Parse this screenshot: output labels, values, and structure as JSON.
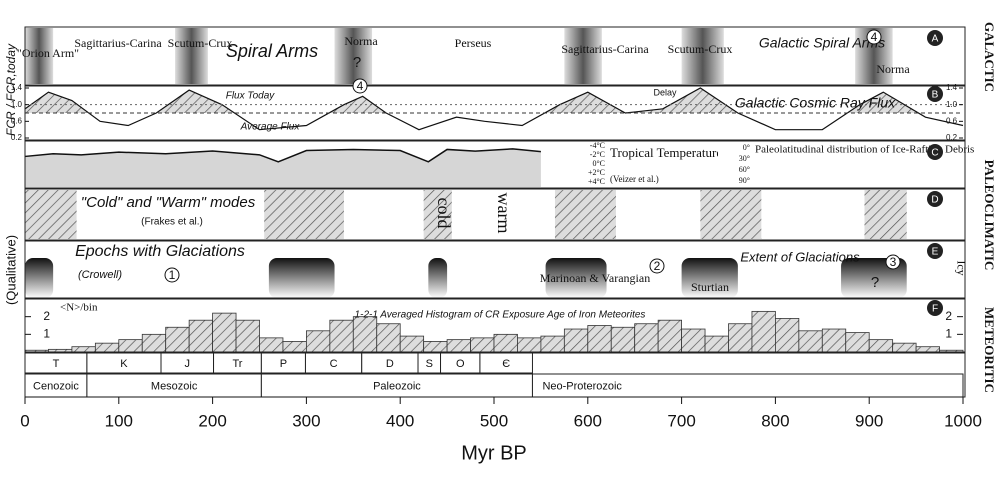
{
  "chart_data": {
    "type": "multi-panel",
    "xlabel": "Myr BP",
    "xlim": [
      0,
      1000
    ],
    "xticks": [
      0,
      100,
      200,
      300,
      400,
      500,
      600,
      700,
      800,
      900,
      1000
    ],
    "ylabel": "FCR / FCR,today",
    "qualitative": "(Qualitative)",
    "groups": [
      "GALACTIC",
      "PALEOCLIMATIC",
      "METEORITIC"
    ],
    "spiral": {
      "letter": "A",
      "title": "Spiral Arms",
      "caption": "Galactic Spiral Arms",
      "arms": [
        "\"Orion Arm\"",
        "Sagittarius-Carina",
        "Scutum-Crux",
        "Norma",
        "Perseus",
        "Sagittarius-Carina",
        "Scutum-Crux",
        "Norma"
      ],
      "bands": [
        [
          0,
          30
        ],
        [
          160,
          195
        ],
        [
          330,
          370
        ],
        [
          575,
          615
        ],
        [
          700,
          745
        ],
        [
          885,
          925
        ]
      ],
      "question": "?",
      "circle": "4"
    },
    "flux": {
      "letter": "B",
      "today": "Flux Today",
      "average": "Average Flux",
      "caption": "Galactic Cosmic Ray Flux",
      "delay": "Delay",
      "circle": "4",
      "ylim": [
        0.2,
        1.4
      ],
      "yticks": [
        0.2,
        0.6,
        {
          "value": 1,
          "label": "1.0"
        },
        1.4
      ],
      "today_value": 1,
      "average_value": 0.8,
      "x": [
        0,
        25,
        50,
        80,
        110,
        140,
        175,
        210,
        250,
        300,
        340,
        360,
        385,
        420,
        460,
        490,
        530,
        570,
        600,
        640,
        680,
        720,
        760,
        800,
        850,
        890,
        915,
        960,
        1000
      ],
      "values": [
        0.9,
        1.3,
        1.1,
        0.6,
        0.5,
        0.8,
        1.35,
        1.0,
        0.4,
        0.5,
        1.0,
        1.2,
        0.8,
        0.4,
        0.7,
        0.6,
        0.5,
        1.0,
        1.3,
        0.8,
        0.9,
        1.4,
        0.8,
        0.4,
        0.4,
        1.0,
        1.3,
        0.7,
        0.5
      ]
    },
    "temperature": {
      "letter": "C",
      "title": "Tropical Temperature",
      "source": "(Veizer et al.)",
      "ylim": [
        4,
        -4
      ],
      "yticks": [
        {
          "value": -4,
          "label": "-4°C"
        },
        {
          "value": -2,
          "label": "-2°C"
        },
        {
          "value": 0,
          "label": "0°C"
        },
        {
          "value": 2,
          "label": "+2°C"
        },
        {
          "value": 4,
          "label": "+4°C"
        }
      ],
      "x": [
        0,
        30,
        60,
        100,
        150,
        200,
        250,
        270,
        300,
        350,
        400,
        430,
        450,
        480,
        520,
        550
      ],
      "values": [
        -1.5,
        -2,
        -1.8,
        -2.3,
        -2,
        -2.5,
        -1.8,
        -0.5,
        -2.6,
        -2.8,
        -2.6,
        -0.5,
        -2.8,
        -2.5,
        -2.9,
        -2.4
      ]
    },
    "rafting": {
      "title": "Paleolatitudinal distribution of Ice-Rafting Debris",
      "ticks": [
        {
          "value": 0,
          "label": "0°"
        },
        {
          "value": 30,
          "label": "30°"
        },
        {
          "value": 60,
          "label": "60°"
        },
        {
          "value": 90,
          "label": "90°"
        }
      ]
    },
    "modes": {
      "letter": "D",
      "title": "\"Cold\" and \"Warm\" modes",
      "source": "(Frakes et al.)",
      "cold": "cold",
      "warm": "warm",
      "cold_intervals": [
        [
          0,
          55
        ],
        [
          255,
          340
        ],
        [
          425,
          455
        ],
        [
          565,
          630
        ],
        [
          720,
          785
        ],
        [
          895,
          940
        ]
      ]
    },
    "glaciations": {
      "letter": "E",
      "title": "Epochs with Glaciations",
      "source": "(Crowell)",
      "circles": [
        "1",
        "2",
        "3"
      ],
      "labels": [
        "Marinoan & Varangian",
        "Sturtian",
        "Extent of Glaciations",
        "?",
        "Icy"
      ],
      "intervals": [
        [
          0,
          30
        ],
        [
          260,
          330
        ],
        [
          430,
          450
        ],
        [
          555,
          620
        ],
        [
          700,
          760
        ],
        [
          870,
          940
        ]
      ]
    },
    "histogram": {
      "letter": "F",
      "title": "1-2-1 Averaged Histogram of CR Exposure Age of Iron Meteorites",
      "ylabel": "<N>/bin",
      "ylim": [
        0,
        3
      ],
      "yticks": [
        1,
        2
      ],
      "bins": [
        0,
        25,
        50,
        75,
        100,
        125,
        150,
        175,
        200,
        225,
        250,
        275,
        300,
        325,
        350,
        375,
        400,
        425,
        450,
        475,
        500,
        525,
        550,
        575,
        600,
        625,
        650,
        675,
        700,
        725,
        750,
        775,
        800,
        825,
        850,
        875,
        900,
        925,
        950,
        975,
        1000
      ],
      "counts": [
        0.1,
        0.15,
        0.3,
        0.5,
        0.7,
        1.0,
        1.4,
        1.8,
        2.2,
        1.8,
        0.8,
        0.6,
        1.2,
        1.8,
        2.0,
        1.6,
        0.9,
        0.6,
        0.7,
        0.8,
        1.0,
        0.8,
        0.9,
        1.3,
        1.5,
        1.4,
        1.6,
        1.8,
        1.3,
        0.9,
        1.6,
        2.3,
        1.9,
        1.2,
        1.3,
        1.1,
        0.7,
        0.5,
        0.3,
        0.1
      ]
    },
    "timescale": {
      "periods": [
        {
          "name": "T",
          "start": 0,
          "end": 66
        },
        {
          "name": "K",
          "start": 66,
          "end": 145
        },
        {
          "name": "J",
          "start": 145,
          "end": 201
        },
        {
          "name": "Tr",
          "start": 201,
          "end": 252
        },
        {
          "name": "P",
          "start": 252,
          "end": 299
        },
        {
          "name": "C",
          "start": 299,
          "end": 359
        },
        {
          "name": "D",
          "start": 359,
          "end": 419
        },
        {
          "name": "S",
          "start": 419,
          "end": 443
        },
        {
          "name": "O",
          "start": 443,
          "end": 485
        },
        {
          "name": "Є",
          "start": 485,
          "end": 541
        }
      ],
      "eras": [
        {
          "name": "Cenozoic",
          "start": 0,
          "end": 66
        },
        {
          "name": "Mesozoic",
          "start": 66,
          "end": 252
        },
        {
          "name": "Paleozoic",
          "start": 252,
          "end": 541
        },
        {
          "name": "Neo-Proterozoic",
          "start": 541,
          "end": 1000
        }
      ]
    }
  }
}
